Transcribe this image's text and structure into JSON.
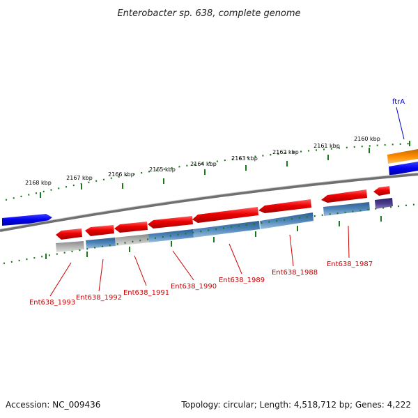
{
  "title": "Enterobacter sp. 638, complete genome",
  "footer": {
    "accession": "Accession: NC_009436",
    "summary": "Topology: circular; Length: 4,518,712 bp; Genes: 4,222"
  },
  "ruler_labels": [
    "2168 kbp",
    "2167 kbp",
    "2166 kbp",
    "2165 kbp",
    "2164 kbp",
    "2163 kbp",
    "2162 kbp",
    "2161 kbp",
    "2160 kbp"
  ],
  "gene_labels": [
    "ftrA",
    "Ent638_1993",
    "Ent638_1992",
    "Ent638_1991",
    "Ent638_1990",
    "Ent638_1989",
    "Ent638_1988",
    "Ent638_1987"
  ],
  "colors": {
    "cds": "#ee0000",
    "gene": "#4a7fb5",
    "pseudo": "#b0b0b0",
    "forward_gene": "#0000ee",
    "orange_feature": "#ff8c00",
    "purple_feature": "#4b3a8c",
    "backbone": "#808080",
    "ticks": "#1a7a1a"
  }
}
